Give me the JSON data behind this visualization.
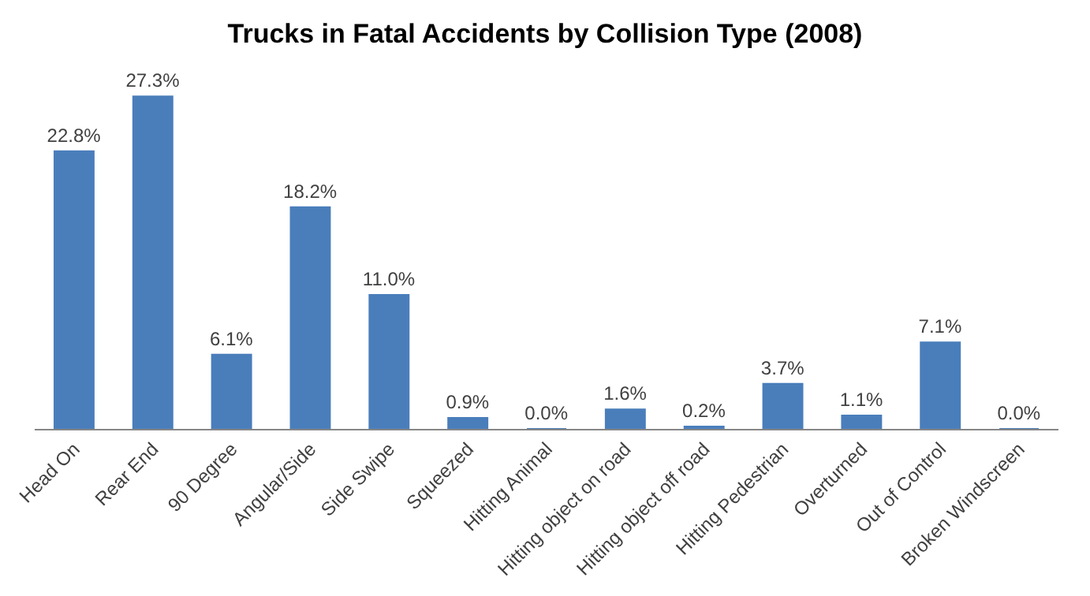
{
  "chart_data": {
    "type": "bar",
    "title": "Trucks in Fatal Accidents by Collision Type (2008)",
    "categories": [
      "Head On",
      "Rear End",
      "90 Degree",
      "Angular/Side",
      "Side Swipe",
      "Squeezed",
      "Hitting Animal",
      "Hitting object on road",
      "Hitting object off road",
      "Hitting Pedestrian",
      "Overturned",
      "Out of Control",
      "Broken Windscreen"
    ],
    "values": [
      22.8,
      27.3,
      6.1,
      18.2,
      11.0,
      0.9,
      0.0,
      1.6,
      0.2,
      3.7,
      1.1,
      7.1,
      0.0
    ],
    "value_labels": [
      "22.8%",
      "27.3%",
      "6.1%",
      "18.2%",
      "11.0%",
      "0.9%",
      "0.0%",
      "1.6%",
      "0.2%",
      "3.7%",
      "1.1%",
      "7.1%",
      "0.0%"
    ],
    "color": "#4a7ebb",
    "legend": false
  }
}
